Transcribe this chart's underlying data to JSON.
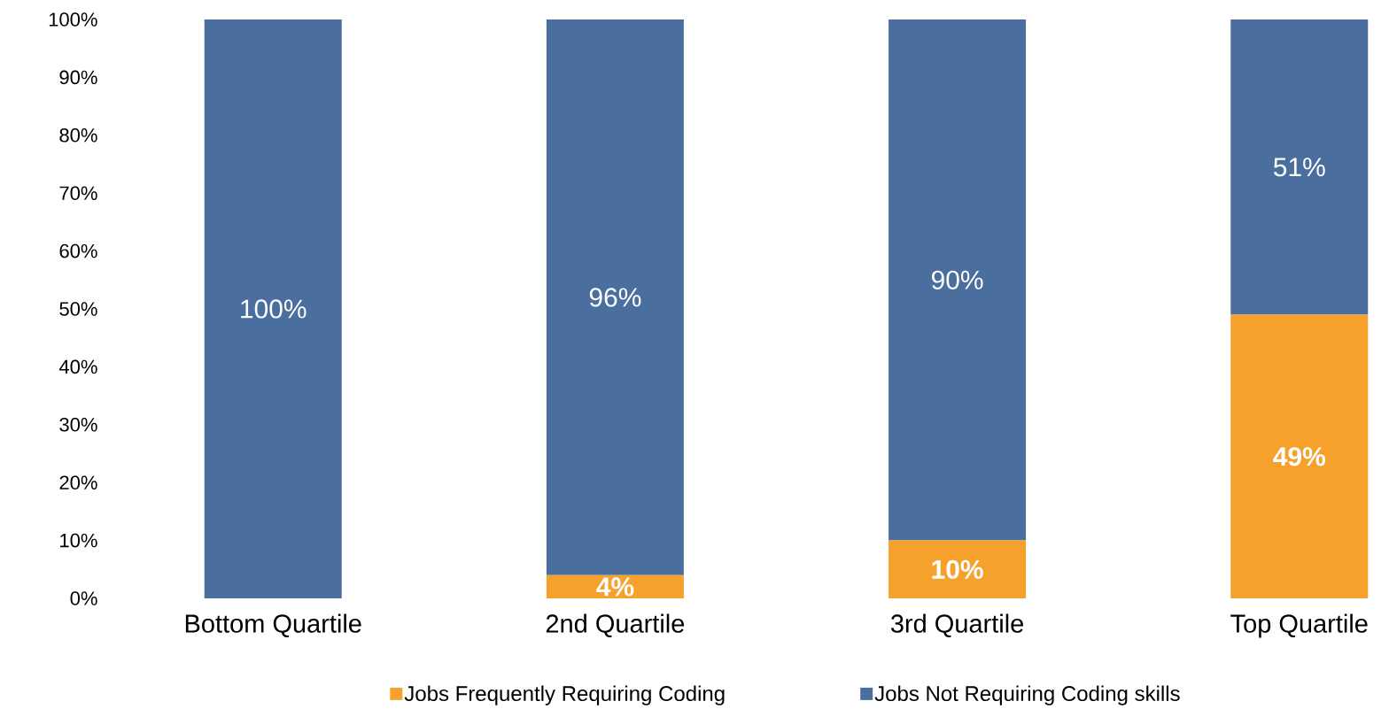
{
  "chart_data": {
    "type": "bar",
    "stacked": true,
    "categories": [
      "Bottom Quartile",
      "2nd Quartile",
      "3rd Quartile",
      "Top Quartile"
    ],
    "series": [
      {
        "name": "Jobs Frequently Requiring Coding",
        "color": "#f7a12d",
        "values": [
          0,
          4,
          10,
          49
        ],
        "value_labels": [
          null,
          "4%",
          "10%",
          "49%"
        ]
      },
      {
        "name": "Jobs Not Requiring Coding skills",
        "color": "#4a6f9f",
        "values": [
          100,
          96,
          90,
          51
        ],
        "value_labels": [
          "100%",
          "96%",
          "90%",
          "51%"
        ]
      }
    ],
    "ylim": [
      0,
      100
    ],
    "yticks": [
      {
        "value": 0,
        "label": "0%"
      },
      {
        "value": 10,
        "label": "10%"
      },
      {
        "value": 20,
        "label": "20%"
      },
      {
        "value": 30,
        "label": "30%"
      },
      {
        "value": 40,
        "label": "40%"
      },
      {
        "value": 50,
        "label": "50%"
      },
      {
        "value": 60,
        "label": "60%"
      },
      {
        "value": 70,
        "label": "70%"
      },
      {
        "value": 80,
        "label": "80%"
      },
      {
        "value": 90,
        "label": "90%"
      },
      {
        "value": 100,
        "label": "100%"
      }
    ],
    "legend": "bottom",
    "grid": false
  }
}
